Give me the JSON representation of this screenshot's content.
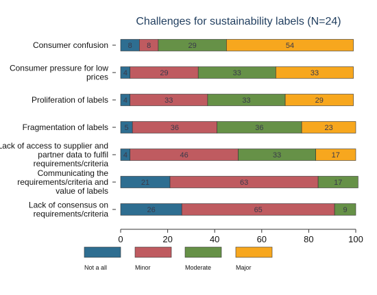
{
  "chart_data": {
    "type": "bar",
    "orientation": "horizontal",
    "stacked": true,
    "title": "Challenges for sustainability labels (N=24)",
    "categories": [
      [
        "Consumer confusion"
      ],
      [
        "Consumer pressure for low",
        "prices"
      ],
      [
        "Proliferation of labels"
      ],
      [
        "Fragmentation of labels"
      ],
      [
        "Lack of access to supplier and",
        "partner data to fulfil",
        "requirements/criteria"
      ],
      [
        "Communicating the",
        "requirements/criteria and",
        "value of labels"
      ],
      [
        "Lack of consensus on",
        "requirements/criteria"
      ]
    ],
    "series": [
      {
        "name": "Not a all",
        "color": "#2e6e91",
        "values": [
          8,
          4,
          4,
          5,
          4,
          21,
          26
        ],
        "labels": [
          "8",
          "4",
          "4",
          "5",
          "4",
          "21",
          "26"
        ]
      },
      {
        "name": "Minor",
        "color": "#bf5b60",
        "values": [
          8,
          29,
          33,
          36,
          46,
          63,
          65
        ],
        "labels": [
          "8",
          "29",
          "33",
          "36",
          "46",
          "63",
          "65"
        ]
      },
      {
        "name": "Moderate",
        "color": "#669147",
        "values": [
          29,
          33,
          33,
          36,
          33,
          17,
          9
        ],
        "labels": [
          "29",
          "33",
          "33",
          "36",
          "33",
          "17",
          "9"
        ]
      },
      {
        "name": "Major",
        "color": "#f7a71e",
        "values": [
          54,
          33,
          29,
          23,
          17,
          0,
          0
        ],
        "labels": [
          "54",
          "33",
          "29",
          "23",
          "17",
          "",
          ""
        ]
      }
    ],
    "xlim": [
      0,
      100
    ],
    "xticks": [
      "0",
      "20",
      "40",
      "60",
      "80",
      "100"
    ],
    "grid": false,
    "legend_position": "bottom",
    "label_color": "#3a3a4a",
    "title_color": "#1f3d5e"
  }
}
